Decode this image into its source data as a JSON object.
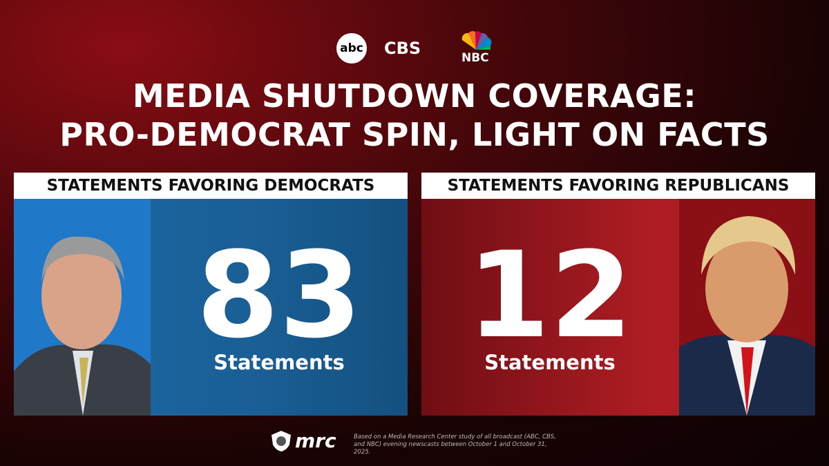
{
  "logos": [
    "abc",
    "CBS",
    "NBC"
  ],
  "title": [
    "MEDIA SHUTDOWN COVERAGE:",
    "PRO-DEMOCRAT SPIN, LIGHT ON FACTS"
  ],
  "panels": [
    {
      "header": "STATEMENTS FAVORING DEMOCRATS",
      "number": "83",
      "unit": "Statements"
    },
    {
      "header": "STATEMENTS FAVORING REPUBLICANS",
      "number": "12",
      "unit": "Statements"
    }
  ],
  "footer": {
    "brand": "mrc",
    "note": "Based on a Media Research Center study of all broadcast (ABC, CBS, and NBC) evening newscasts between October 1 and October 31, 2025."
  }
}
